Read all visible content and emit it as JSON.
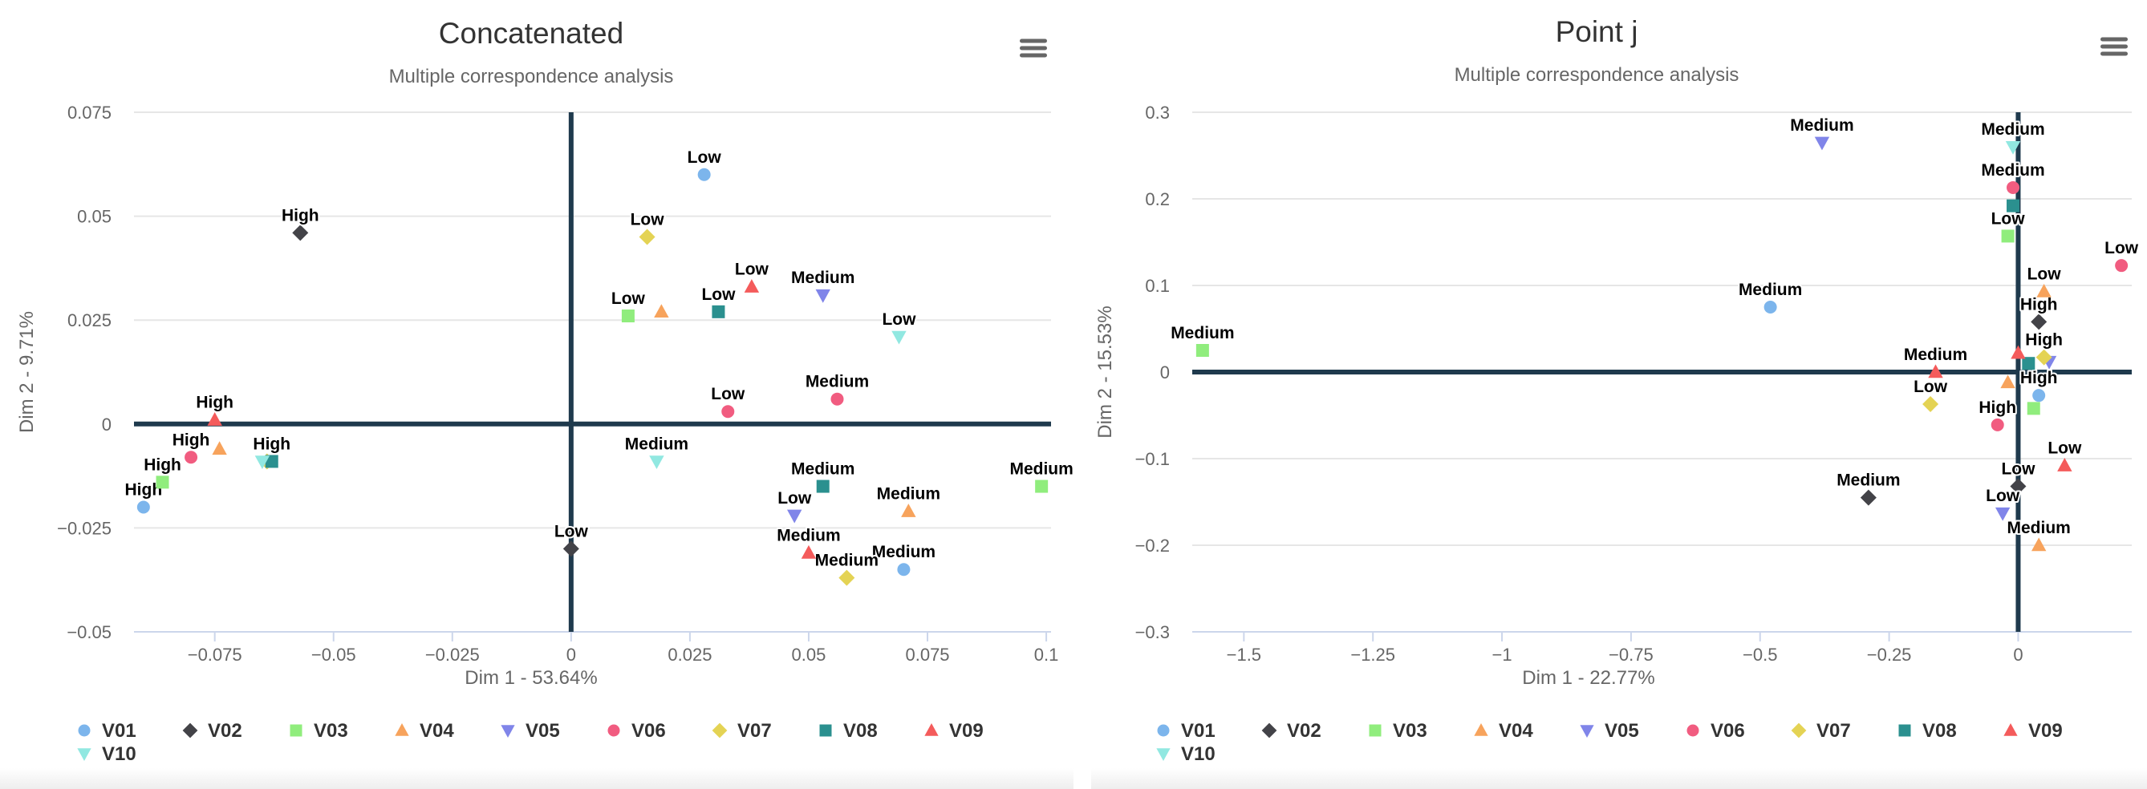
{
  "menu_icon": "hamburger-menu-icon",
  "colors": {
    "V01": "#7cb5ec",
    "V02": "#434348",
    "V03": "#90ed7d",
    "V04": "#f7a35c",
    "V05": "#8085e9",
    "V06": "#f15c80",
    "V07": "#e4d354",
    "V08": "#2b908f",
    "V09": "#f45b5b",
    "V10": "#91e8e1",
    "axis_line": "#1f3a4d",
    "grid": "#e6e6e6"
  },
  "chart_data": [
    {
      "type": "scatter",
      "title": "Concatenated",
      "subtitle": "Multiple correspondence analysis",
      "xlabel": "Dim 1 - 53.64%",
      "ylabel": "Dim 2 - 9.71%",
      "xlim": [
        -0.092,
        0.101
      ],
      "ylim": [
        -0.05,
        0.075
      ],
      "xticks": [
        -0.075,
        -0.05,
        -0.025,
        0,
        0.025,
        0.05,
        0.075,
        0.1
      ],
      "xtick_labels": [
        "−0.075",
        "−0.05",
        "−0.025",
        "0",
        "0.025",
        "0.05",
        "0.075",
        "0.1"
      ],
      "yticks": [
        -0.05,
        -0.025,
        0,
        0.025,
        0.05,
        0.075
      ],
      "ytick_labels": [
        "−0.05",
        "−0.025",
        "0",
        "0.025",
        "0.05",
        "0.075"
      ],
      "grid": "horizontal",
      "legend": "bottom",
      "series": [
        {
          "name": "V01",
          "marker": "circle",
          "points": [
            {
              "x": 0.028,
              "y": 0.06,
              "label": "Low"
            },
            {
              "x": -0.09,
              "y": -0.02,
              "label": "High"
            },
            {
              "x": 0.07,
              "y": -0.035,
              "label": "Medium"
            }
          ]
        },
        {
          "name": "V02",
          "marker": "diamond",
          "points": [
            {
              "x": -0.057,
              "y": 0.046,
              "label": "High"
            },
            {
              "x": 0.0,
              "y": -0.03,
              "label": "Low"
            }
          ]
        },
        {
          "name": "V03",
          "marker": "square",
          "points": [
            {
              "x": 0.012,
              "y": 0.026,
              "label": "Low"
            },
            {
              "x": 0.099,
              "y": -0.015,
              "label": "Medium"
            },
            {
              "x": -0.086,
              "y": -0.014,
              "label": "High"
            }
          ]
        },
        {
          "name": "V04",
          "marker": "triangle",
          "points": [
            {
              "x": 0.019,
              "y": 0.027,
              "label": ""
            },
            {
              "x": 0.071,
              "y": -0.021,
              "label": "Medium"
            },
            {
              "x": -0.074,
              "y": -0.006,
              "label": ""
            }
          ]
        },
        {
          "name": "V05",
          "marker": "triangle-down",
          "points": [
            {
              "x": 0.053,
              "y": 0.031,
              "label": "Medium"
            },
            {
              "x": 0.047,
              "y": -0.022,
              "label": "Low"
            }
          ]
        },
        {
          "name": "V06",
          "marker": "circle",
          "points": [
            {
              "x": 0.033,
              "y": 0.003,
              "label": "Low"
            },
            {
              "x": 0.056,
              "y": 0.006,
              "label": "Medium"
            },
            {
              "x": -0.08,
              "y": -0.008,
              "label": "High"
            }
          ]
        },
        {
          "name": "V07",
          "marker": "diamond",
          "points": [
            {
              "x": 0.016,
              "y": 0.045,
              "label": "Low"
            },
            {
              "x": 0.058,
              "y": -0.037,
              "label": "Medium"
            },
            {
              "x": -0.064,
              "y": -0.009,
              "label": ""
            }
          ]
        },
        {
          "name": "V08",
          "marker": "square",
          "points": [
            {
              "x": 0.031,
              "y": 0.027,
              "label": "Low"
            },
            {
              "x": 0.053,
              "y": -0.015,
              "label": "Medium"
            },
            {
              "x": -0.063,
              "y": -0.009,
              "label": "High"
            }
          ]
        },
        {
          "name": "V09",
          "marker": "triangle",
          "points": [
            {
              "x": 0.038,
              "y": 0.033,
              "label": "Low"
            },
            {
              "x": 0.05,
              "y": -0.031,
              "label": "Medium"
            },
            {
              "x": -0.075,
              "y": 0.001,
              "label": "High"
            }
          ]
        },
        {
          "name": "V10",
          "marker": "triangle-down",
          "points": [
            {
              "x": 0.069,
              "y": 0.021,
              "label": "Low"
            },
            {
              "x": 0.018,
              "y": -0.009,
              "label": "Medium"
            },
            {
              "x": -0.065,
              "y": -0.009,
              "label": ""
            }
          ]
        }
      ]
    },
    {
      "type": "scatter",
      "title": "Point j",
      "subtitle": "Multiple correspondence analysis",
      "xlabel": "Dim 1 - 22.77%",
      "ylabel": "Dim 2 - 15.53%",
      "xlim": [
        -1.6,
        0.22
      ],
      "ylim": [
        -0.3,
        0.3
      ],
      "xticks": [
        -1.5,
        -1.25,
        -1,
        -0.75,
        -0.5,
        -0.25,
        0
      ],
      "xtick_labels": [
        "−1.5",
        "−1.25",
        "−1",
        "−0.75",
        "−0.5",
        "−0.25",
        "0"
      ],
      "yticks": [
        -0.3,
        -0.2,
        -0.1,
        0,
        0.1,
        0.2,
        0.3
      ],
      "ytick_labels": [
        "−0.3",
        "−0.2",
        "−0.1",
        "0",
        "0.1",
        "0.2",
        "0.3"
      ],
      "grid": "horizontal",
      "legend": "bottom",
      "series": [
        {
          "name": "V01",
          "marker": "circle",
          "points": [
            {
              "x": -0.48,
              "y": 0.075,
              "label": "Medium"
            },
            {
              "x": 0.04,
              "y": -0.027,
              "label": "High"
            }
          ]
        },
        {
          "name": "V02",
          "marker": "diamond",
          "points": [
            {
              "x": -0.29,
              "y": -0.145,
              "label": "Medium"
            },
            {
              "x": 0.04,
              "y": 0.058,
              "label": "High"
            },
            {
              "x": 0.0,
              "y": -0.132,
              "label": "Low"
            }
          ]
        },
        {
          "name": "V03",
          "marker": "square",
          "points": [
            {
              "x": -1.58,
              "y": 0.025,
              "label": "Medium"
            },
            {
              "x": -0.02,
              "y": 0.157,
              "label": "Low"
            },
            {
              "x": 0.03,
              "y": -0.042,
              "label": ""
            }
          ]
        },
        {
          "name": "V04",
          "marker": "triangle",
          "points": [
            {
              "x": 0.05,
              "y": 0.093,
              "label": "Low"
            },
            {
              "x": -0.02,
              "y": -0.012,
              "label": ""
            },
            {
              "x": 0.04,
              "y": -0.2,
              "label": "Medium"
            }
          ]
        },
        {
          "name": "V05",
          "marker": "triangle-down",
          "points": [
            {
              "x": -0.38,
              "y": 0.265,
              "label": "Medium"
            },
            {
              "x": 0.06,
              "y": 0.012,
              "label": ""
            },
            {
              "x": -0.03,
              "y": -0.163,
              "label": "Low"
            }
          ]
        },
        {
          "name": "V06",
          "marker": "circle",
          "points": [
            {
              "x": -0.01,
              "y": 0.213,
              "label": "Medium"
            },
            {
              "x": 0.2,
              "y": 0.123,
              "label": "Low"
            },
            {
              "x": -0.04,
              "y": -0.061,
              "label": "High"
            }
          ]
        },
        {
          "name": "V07",
          "marker": "diamond",
          "points": [
            {
              "x": 0.05,
              "y": 0.017,
              "label": "High"
            },
            {
              "x": -0.17,
              "y": -0.037,
              "label": "Low"
            }
          ]
        },
        {
          "name": "V08",
          "marker": "square",
          "points": [
            {
              "x": -0.01,
              "y": 0.192,
              "label": ""
            },
            {
              "x": 0.02,
              "y": 0.01,
              "label": ""
            }
          ]
        },
        {
          "name": "V09",
          "marker": "triangle",
          "points": [
            {
              "x": 0.0,
              "y": 0.022,
              "label": ""
            },
            {
              "x": -0.16,
              "y": 0.0,
              "label": "Medium"
            },
            {
              "x": 0.09,
              "y": -0.108,
              "label": "Low"
            }
          ]
        },
        {
          "name": "V10",
          "marker": "triangle-down",
          "points": [
            {
              "x": -0.01,
              "y": 0.26,
              "label": "Medium"
            }
          ]
        }
      ]
    }
  ]
}
